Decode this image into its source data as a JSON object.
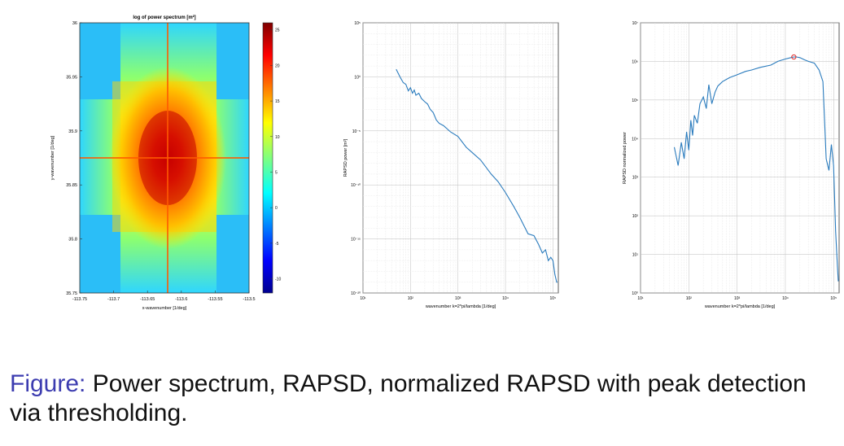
{
  "caption": {
    "label": "Figure:",
    "text": " Power spectrum, RAPSD, normalized RAPSD with peak detection via thresholding."
  },
  "chart_data": [
    {
      "type": "heatmap",
      "title": "log of power spectrum [m²]",
      "xlabel": "x-wavenumber [1/deg]",
      "ylabel": "y-wavenumber [1/deg]",
      "xlim": [
        -113.75,
        -113.5
      ],
      "ylim": [
        35.75,
        36
      ],
      "x_ticks": [
        "-113.75",
        "-113.7",
        "-113.65",
        "-113.6",
        "-113.55",
        "-113.5"
      ],
      "y_ticks": [
        "35.75",
        "35.8",
        "35.85",
        "35.9",
        "35.95",
        "36"
      ],
      "colorbar": {
        "min": -12,
        "max": 26,
        "ticks": [
          "-10",
          "-5",
          "0",
          "5",
          "10",
          "15",
          "20",
          "25"
        ]
      },
      "center": {
        "x": -113.62,
        "y": 35.873,
        "value": 25
      },
      "colormap": "jet"
    },
    {
      "type": "line",
      "xlabel": "wavenumber k=2*pi/lambda [1/deg]",
      "ylabel": "RAPSD power [m²]",
      "x_scale": "log",
      "y_scale": "log",
      "xlim": [
        10,
        130000
      ],
      "ylim": [
        1e-20,
        100000.0
      ],
      "x_ticks": [
        "10¹",
        "10²",
        "10³",
        "10⁴",
        "10⁵"
      ],
      "y_ticks": [
        "10⁻²⁰",
        "10⁻¹⁵",
        "10⁻¹⁰",
        "10⁻⁵",
        "10⁰",
        "10⁵"
      ],
      "grid": true,
      "color": "#2a7bbd",
      "x": [
        50,
        60,
        70,
        80,
        90,
        100,
        110,
        120,
        130,
        150,
        170,
        200,
        230,
        260,
        300,
        350,
        400,
        500,
        700,
        1000,
        1500,
        2000,
        3000,
        5000,
        7000,
        10000,
        15000,
        20000,
        30000,
        40000,
        50000,
        60000,
        70000,
        80000,
        90000,
        100000,
        110000,
        120000,
        125000
      ],
      "y": [
        5.0,
        1.0,
        0.3,
        0.2,
        0.05,
        0.1,
        0.03,
        0.06,
        0.02,
        0.03,
        0.01,
        0.005,
        0.003,
        0.001,
        0.0005,
        0.0001,
        5e-05,
        3e-05,
        8e-06,
        3e-06,
        3e-07,
        1e-07,
        2e-08,
        1e-09,
        2e-10,
        2e-11,
        1e-12,
        1e-13,
        3e-15,
        2e-15,
        3e-16,
        5e-17,
        1e-16,
        1e-17,
        2e-17,
        1e-17,
        5e-19,
        1e-19,
        1e-19
      ]
    },
    {
      "type": "line",
      "xlabel": "wavenumber k=2*pi/lambda [1/deg]",
      "ylabel": "RAPSD normalized power",
      "x_scale": "log",
      "y_scale": "log",
      "xlim": [
        10,
        130000
      ],
      "ylim": [
        1.0,
        10000000.0
      ],
      "x_ticks": [
        "10¹",
        "10²",
        "10³",
        "10⁴",
        "10⁵"
      ],
      "y_ticks": [
        "10⁰",
        "10¹",
        "10²",
        "10³",
        "10⁴",
        "10⁵",
        "10⁶",
        "10⁷"
      ],
      "grid": true,
      "color": "#2a7bbd",
      "x": [
        50,
        60,
        70,
        80,
        90,
        100,
        110,
        120,
        130,
        150,
        170,
        200,
        230,
        260,
        300,
        350,
        400,
        500,
        700,
        1000,
        1500,
        2000,
        3000,
        5000,
        7000,
        10000,
        13000,
        15000,
        17000,
        20000,
        25000,
        30000,
        40000,
        50000,
        60000,
        70000,
        80000,
        90000,
        100000,
        110000,
        120000,
        125000
      ],
      "y": [
        6000,
        2000,
        8000,
        3000,
        15000,
        5000,
        30000,
        12000,
        40000,
        25000,
        80000,
        120000,
        60000,
        250000,
        80000,
        160000,
        230000,
        300000,
        380000,
        450000,
        550000,
        600000,
        700000,
        800000,
        1000000,
        1150000,
        1250000,
        1300000,
        1300000,
        1250000,
        1100000,
        1000000,
        900000,
        600000,
        300000,
        3000,
        1500,
        7000,
        2000,
        40,
        5,
        2
      ],
      "peak": {
        "x": 15000,
        "y": 1300000,
        "color": "#e03030"
      }
    }
  ]
}
